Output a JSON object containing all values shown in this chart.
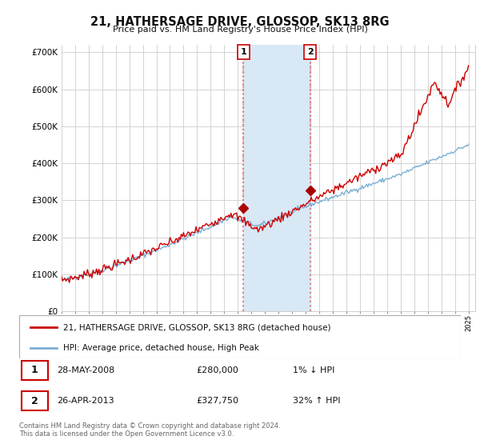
{
  "title": "21, HATHERSAGE DRIVE, GLOSSOP, SK13 8RG",
  "subtitle": "Price paid vs. HM Land Registry's House Price Index (HPI)",
  "legend_line1": "21, HATHERSAGE DRIVE, GLOSSOP, SK13 8RG (detached house)",
  "legend_line2": "HPI: Average price, detached house, High Peak",
  "transaction1_date": "28-MAY-2008",
  "transaction1_price": "£280,000",
  "transaction1_hpi": "1% ↓ HPI",
  "transaction1_year": 2008.42,
  "transaction1_value": 280000,
  "transaction2_date": "26-APR-2013",
  "transaction2_price": "£327,750",
  "transaction2_hpi": "32% ↑ HPI",
  "transaction2_year": 2013.33,
  "transaction2_value": 327750,
  "footer": "Contains HM Land Registry data © Crown copyright and database right 2024.\nThis data is licensed under the Open Government Licence v3.0.",
  "hpi_color": "#7bafd4",
  "price_color": "#cc0000",
  "marker_color": "#aa0000",
  "ylim": [
    0,
    720000
  ],
  "yticks": [
    0,
    100000,
    200000,
    300000,
    400000,
    500000,
    600000,
    700000
  ],
  "ytick_labels": [
    "£0",
    "£100K",
    "£200K",
    "£300K",
    "£400K",
    "£500K",
    "£600K",
    "£700K"
  ],
  "background_color": "#ffffff",
  "grid_color": "#cccccc",
  "vline_color": "#e08080",
  "span_color": "#d8e8f5"
}
